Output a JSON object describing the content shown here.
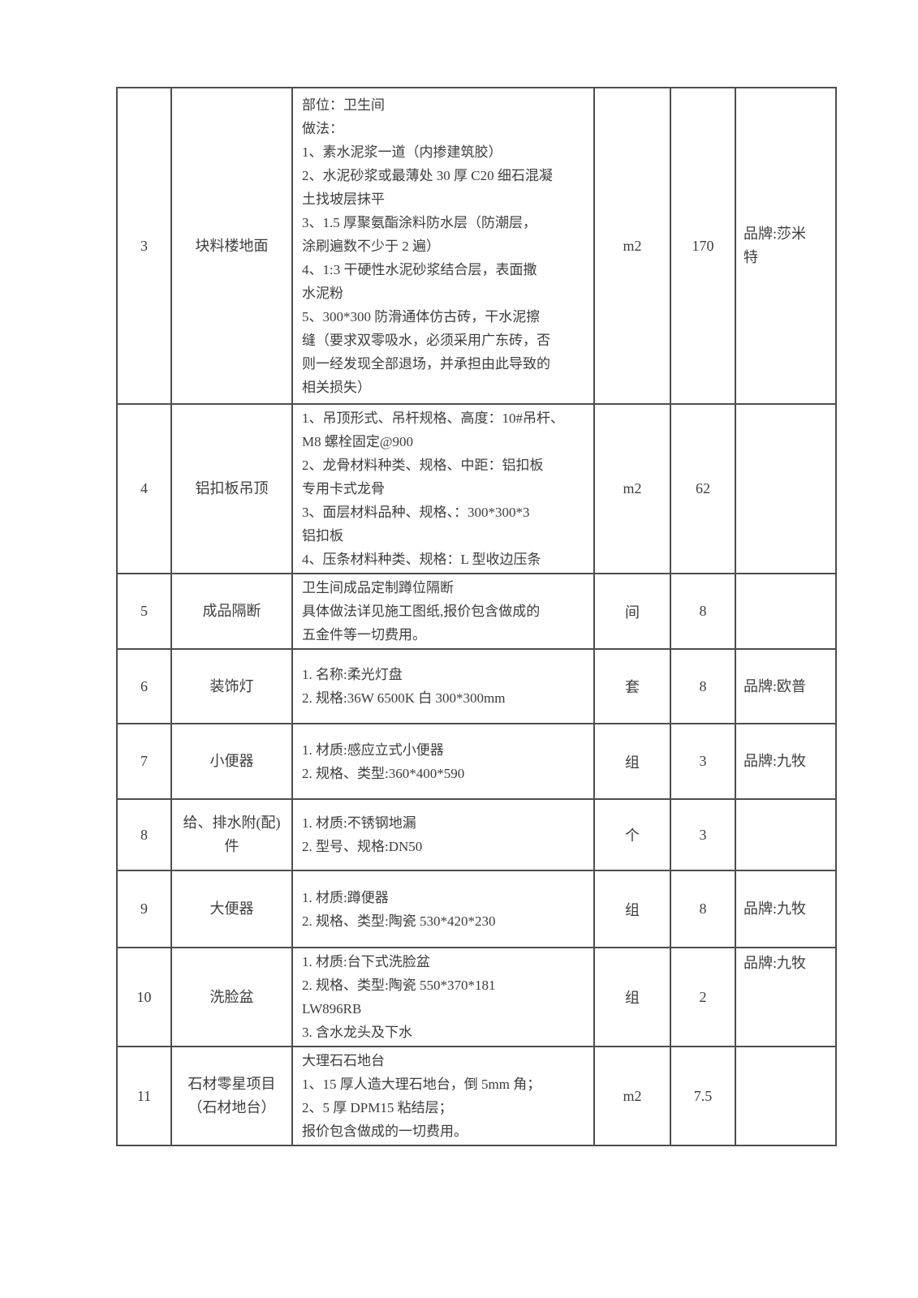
{
  "colors": {
    "background": "#ffffff",
    "border": "#4e4e4e",
    "text": "#3d3d3d"
  },
  "table": {
    "rows": [
      {
        "no": "3",
        "name_lines": [
          "块料楼地面"
        ],
        "desc_lines": [
          "部位：卫生间",
          "做法：",
          "1、素水泥浆一道（内掺建筑胶）",
          "2、水泥砂浆或最薄处 30 厚 C20 细石混凝",
          "土找坡层抹平",
          "3、1.5 厚聚氨酯涂料防水层（防潮层，",
          "涂刷遍数不少于 2 遍）",
          "4、1:3 干硬性水泥砂浆结合层，表面撒",
          "水泥粉",
          "5、300*300 防滑通体仿古砖，干水泥擦",
          "缝（要求双零吸水，必须采用广东砖，否",
          "则一经发现全部退场，并承担由此导致的",
          "相关损失）"
        ],
        "unit": "m2",
        "qty": "170",
        "brand_lines": [
          "品牌:莎米",
          "特"
        ]
      },
      {
        "no": "4",
        "name_lines": [
          "铝扣板吊顶"
        ],
        "desc_lines": [
          "1、吊顶形式、吊杆规格、高度：10#吊杆、",
          "M8 螺栓固定@900",
          "2、龙骨材料种类、规格、中距：铝扣板",
          "专用卡式龙骨",
          "3、面层材料品种、规格、：300*300*3",
          "铝扣板",
          "4、压条材料种类、规格：L 型收边压条"
        ],
        "unit": "m2",
        "qty": "62",
        "brand_lines": []
      },
      {
        "no": "5",
        "name_lines": [
          "成品隔断"
        ],
        "desc_lines": [
          "卫生间成品定制蹲位隔断",
          "具体做法详见施工图纸,报价包含做成的",
          "五金件等一切费用。"
        ],
        "unit": "间",
        "qty": "8",
        "brand_lines": []
      },
      {
        "no": "6",
        "name_lines": [
          "装饰灯"
        ],
        "desc_lines": [
          "1. 名称:柔光灯盘",
          "2. 规格:36W 6500K 白 300*300mm"
        ],
        "unit": "套",
        "qty": "8",
        "brand_lines": [
          "品牌:欧普"
        ]
      },
      {
        "no": "7",
        "name_lines": [
          "小便器"
        ],
        "desc_lines": [
          "1. 材质:感应立式小便器",
          "2. 规格、类型:360*400*590"
        ],
        "unit": "组",
        "qty": "3",
        "brand_lines": [
          "品牌:九牧"
        ]
      },
      {
        "no": "8",
        "name_lines": [
          "给、排水附(配)",
          "件"
        ],
        "desc_lines": [
          "1. 材质:不锈钢地漏",
          "2. 型号、规格:DN50"
        ],
        "unit": "个",
        "qty": "3",
        "brand_lines": []
      },
      {
        "no": "9",
        "name_lines": [
          "大便器"
        ],
        "desc_lines": [
          "1. 材质:蹲便器",
          "2. 规格、类型:陶瓷  530*420*230"
        ],
        "unit": "组",
        "qty": "8",
        "brand_lines": [
          "品牌:九牧"
        ]
      },
      {
        "no": "10",
        "name_lines": [
          "洗脸盆"
        ],
        "desc_lines": [
          "1. 材质:台下式洗脸盆",
          "2. 规格、类型:陶瓷 550*370*181",
          "LW896RB",
          "3. 含水龙头及下水"
        ],
        "unit": "组",
        "qty": "2",
        "brand_lines": [
          "品牌:九牧"
        ]
      },
      {
        "no": "11",
        "name_lines": [
          "石材零星项目",
          "（石材地台）"
        ],
        "desc_lines": [
          "大理石石地台",
          "1、15 厚人造大理石地台，倒 5mm 角；",
          "2、5 厚 DPM15 粘结层；",
          "报价包含做成的一切费用。"
        ],
        "unit": "m2",
        "qty": "7.5",
        "brand_lines": []
      }
    ]
  }
}
